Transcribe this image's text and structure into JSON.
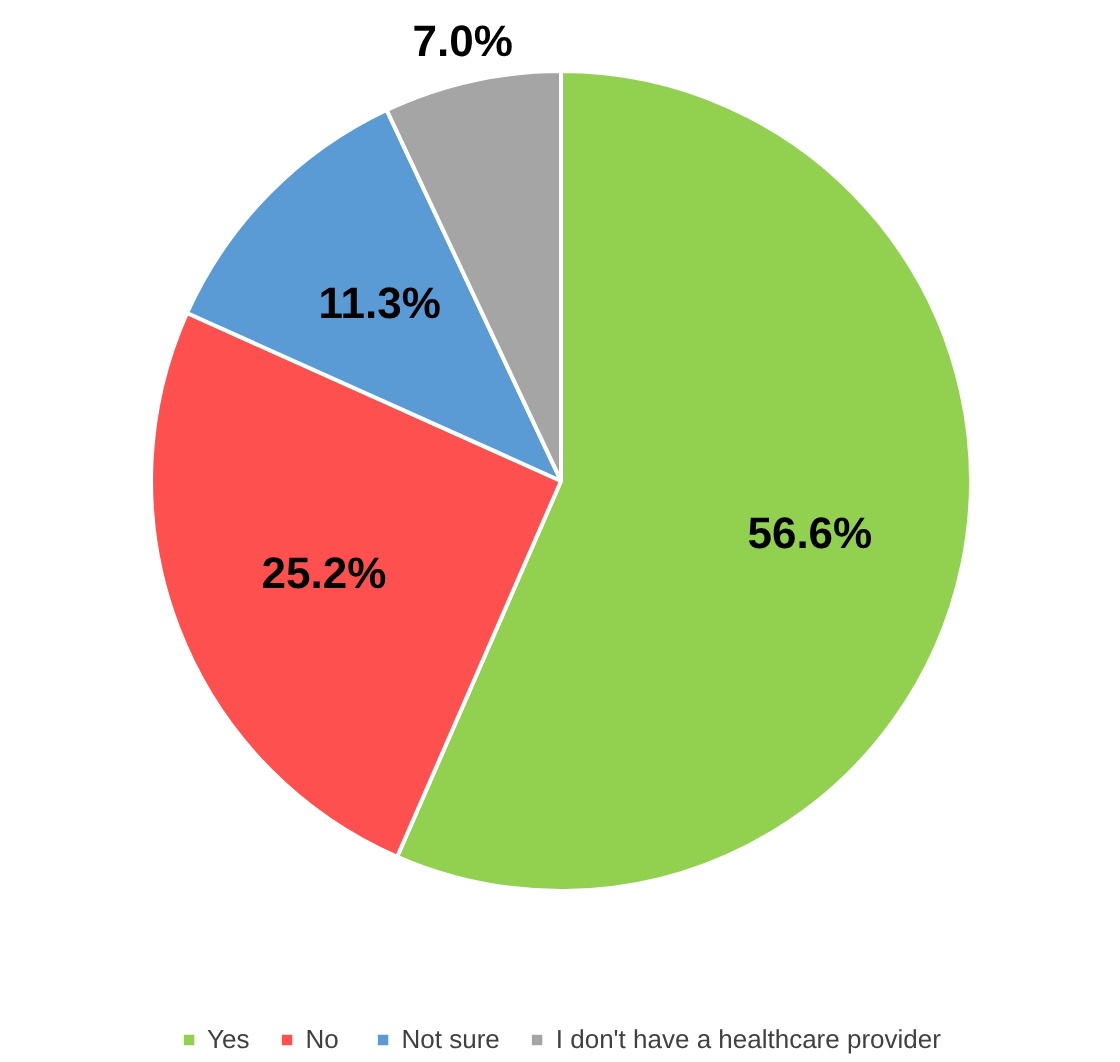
{
  "chart_data": {
    "type": "pie",
    "categories": [
      "Yes",
      "No",
      "Not sure",
      "I don't have a healthcare provider"
    ],
    "values": [
      56.6,
      25.2,
      11.3,
      7.0
    ],
    "colors": [
      "#92d050",
      "#ff5050",
      "#5b9bd5",
      "#a5a5a5"
    ],
    "value_labels": [
      "56.6%",
      "25.2%",
      "11.3%",
      "7.0%"
    ],
    "legend": "bottom"
  }
}
